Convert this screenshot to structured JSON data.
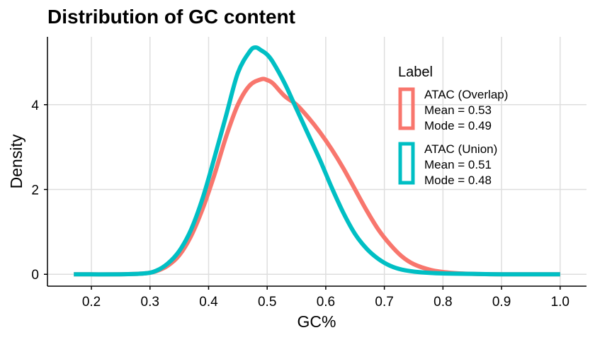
{
  "chart_data": {
    "type": "line",
    "title": "Distribution of GC content",
    "xlabel": "GC%",
    "ylabel": "Density",
    "xlim": [
      0.125,
      1.045
    ],
    "ylim": [
      -0.28,
      5.6
    ],
    "x_ticks": [
      "0.2",
      "0.3",
      "0.4",
      "0.5",
      "0.6",
      "0.7",
      "0.8",
      "0.9",
      "1.0"
    ],
    "y_ticks": [
      "0",
      "2",
      "4"
    ],
    "grid": true,
    "legend": {
      "title": "Label",
      "placement": "top-right"
    },
    "series": [
      {
        "name": "ATAC (Overlap)",
        "mean_text": "Mean = 0.53",
        "mode_text": "Mode = 0.49",
        "color": "#F8766D",
        "x": [
          0.17,
          0.25,
          0.29,
          0.31,
          0.33,
          0.35,
          0.37,
          0.39,
          0.41,
          0.43,
          0.45,
          0.47,
          0.49,
          0.5,
          0.51,
          0.53,
          0.55,
          0.57,
          0.59,
          0.61,
          0.63,
          0.65,
          0.67,
          0.69,
          0.71,
          0.73,
          0.75,
          0.78,
          0.81,
          0.85,
          0.9,
          1.0
        ],
        "y": [
          0,
          0,
          0.02,
          0.07,
          0.2,
          0.45,
          0.9,
          1.55,
          2.35,
          3.25,
          4.0,
          4.45,
          4.6,
          4.58,
          4.5,
          4.2,
          4.0,
          3.7,
          3.35,
          2.95,
          2.5,
          2.0,
          1.5,
          1.05,
          0.7,
          0.42,
          0.24,
          0.1,
          0.04,
          0.01,
          0,
          0
        ]
      },
      {
        "name": "ATAC (Union)",
        "mean_text": "Mean = 0.51",
        "mode_text": "Mode = 0.48",
        "color": "#00BFC4",
        "x": [
          0.17,
          0.25,
          0.29,
          0.31,
          0.33,
          0.35,
          0.37,
          0.39,
          0.41,
          0.43,
          0.45,
          0.47,
          0.48,
          0.49,
          0.5,
          0.51,
          0.53,
          0.55,
          0.57,
          0.59,
          0.61,
          0.63,
          0.65,
          0.67,
          0.69,
          0.71,
          0.73,
          0.76,
          0.8,
          0.85,
          0.9,
          1.0
        ],
        "y": [
          0,
          0,
          0.02,
          0.08,
          0.25,
          0.55,
          1.05,
          1.8,
          2.75,
          3.75,
          4.75,
          5.25,
          5.35,
          5.28,
          5.18,
          5.0,
          4.5,
          3.9,
          3.3,
          2.7,
          2.05,
          1.45,
          0.95,
          0.6,
          0.36,
          0.2,
          0.11,
          0.05,
          0.02,
          0.01,
          0,
          0
        ]
      }
    ]
  }
}
